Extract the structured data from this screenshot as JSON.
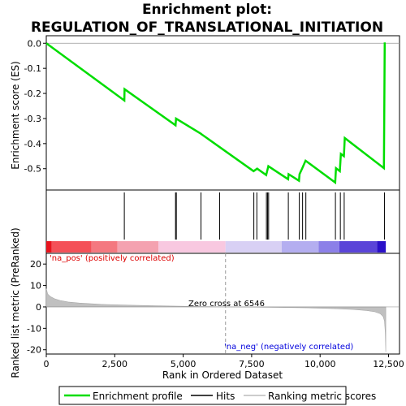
{
  "chart_data": {
    "type": "line",
    "title_line1": "Enrichment plot:",
    "title_line2": "REGULATION_OF_TRANSLATIONAL_INITIATION",
    "top_panel": {
      "ylabel": "Enrichment score (ES)",
      "ylim": [
        -0.585,
        0.03
      ],
      "yticks": [
        "0.0",
        "-0.1",
        "-0.2",
        "-0.3",
        "-0.4",
        "-0.5"
      ],
      "ytick_values": [
        0.0,
        -0.1,
        -0.2,
        -0.3,
        -0.4,
        -0.5
      ],
      "series_name": "Enrichment profile",
      "line_color": "#00dd00",
      "points": [
        [
          0,
          0.0
        ],
        [
          2850,
          -0.228
        ],
        [
          2860,
          -0.183
        ],
        [
          4720,
          -0.327
        ],
        [
          4740,
          -0.3
        ],
        [
          5640,
          -0.36
        ],
        [
          5660,
          -0.362
        ],
        [
          7570,
          -0.51
        ],
        [
          7700,
          -0.5
        ],
        [
          8030,
          -0.525
        ],
        [
          8110,
          -0.49
        ],
        [
          8830,
          -0.542
        ],
        [
          8850,
          -0.522
        ],
        [
          9230,
          -0.548
        ],
        [
          9250,
          -0.522
        ],
        [
          9350,
          -0.498
        ],
        [
          9470,
          -0.468
        ],
        [
          10550,
          -0.555
        ],
        [
          10580,
          -0.498
        ],
        [
          10720,
          -0.51
        ],
        [
          10760,
          -0.441
        ],
        [
          10870,
          -0.45
        ],
        [
          10900,
          -0.378
        ],
        [
          12330,
          -0.498
        ],
        [
          12360,
          0.003
        ]
      ]
    },
    "hits": [
      2850,
      4720,
      4750,
      5650,
      6330,
      7580,
      7690,
      8040,
      8080,
      8120,
      8840,
      9240,
      9360,
      9480,
      10560,
      10740,
      10880,
      12350
    ],
    "rank_panel": {
      "ylabel": "Ranked list metric (PreRanked)",
      "ylim": [
        -22,
        25
      ],
      "yticks": [
        "20",
        "10",
        "0",
        "-10",
        "-20"
      ],
      "ytick_values": [
        20,
        10,
        0,
        -10,
        -20
      ],
      "pos_label": "'na_pos' (positively correlated)",
      "neg_label": "'na_neg' (negatively correlated)",
      "zero_cross_label": "Zero cross at 6546",
      "zero_cross": 6546,
      "profile": [
        [
          0,
          8.5
        ],
        [
          50,
          6.0
        ],
        [
          150,
          4.8
        ],
        [
          300,
          3.8
        ],
        [
          500,
          3.0
        ],
        [
          800,
          2.3
        ],
        [
          1200,
          1.8
        ],
        [
          2000,
          1.2
        ],
        [
          3000,
          0.8
        ],
        [
          4000,
          0.5
        ],
        [
          5000,
          0.3
        ],
        [
          6000,
          0.1
        ],
        [
          6546,
          0.0
        ],
        [
          7500,
          -0.1
        ],
        [
          8500,
          -0.25
        ],
        [
          9500,
          -0.45
        ],
        [
          10500,
          -0.8
        ],
        [
          11200,
          -1.2
        ],
        [
          11700,
          -1.7
        ],
        [
          12000,
          -2.3
        ],
        [
          12200,
          -3.2
        ],
        [
          12300,
          -4.5
        ],
        [
          12350,
          -6.5
        ],
        [
          12380,
          -12.0
        ],
        [
          12400,
          -21.0
        ]
      ]
    },
    "xlabel": "Rank in Ordered Dataset",
    "xlim": [
      0,
      12900
    ],
    "xticks": [
      "0",
      "2,500",
      "5,000",
      "7,500",
      "10,000",
      "12,500"
    ],
    "xtick_values": [
      0,
      2500,
      5000,
      7500,
      10000,
      12500
    ],
    "colorbar_segments": [
      {
        "start": 0,
        "end": 200,
        "color": "#e8141e"
      },
      {
        "start": 200,
        "end": 1650,
        "color": "#f45058"
      },
      {
        "start": 1650,
        "end": 2600,
        "color": "#f47880"
      },
      {
        "start": 2600,
        "end": 4100,
        "color": "#f4a2b0"
      },
      {
        "start": 4100,
        "end": 6546,
        "color": "#f8c8e0"
      },
      {
        "start": 6546,
        "end": 8600,
        "color": "#d8d0f4"
      },
      {
        "start": 8600,
        "end": 9950,
        "color": "#b4aef0"
      },
      {
        "start": 9950,
        "end": 10700,
        "color": "#8c80e8"
      },
      {
        "start": 10700,
        "end": 12080,
        "color": "#5a44d8"
      },
      {
        "start": 12080,
        "end": 12400,
        "color": "#2a10c8"
      }
    ],
    "legend": [
      {
        "label": "Enrichment profile",
        "color": "#00dd00"
      },
      {
        "label": "Hits",
        "color": "#000000"
      },
      {
        "label": "Ranking metric scores",
        "color": "#bbbbbb"
      }
    ]
  }
}
